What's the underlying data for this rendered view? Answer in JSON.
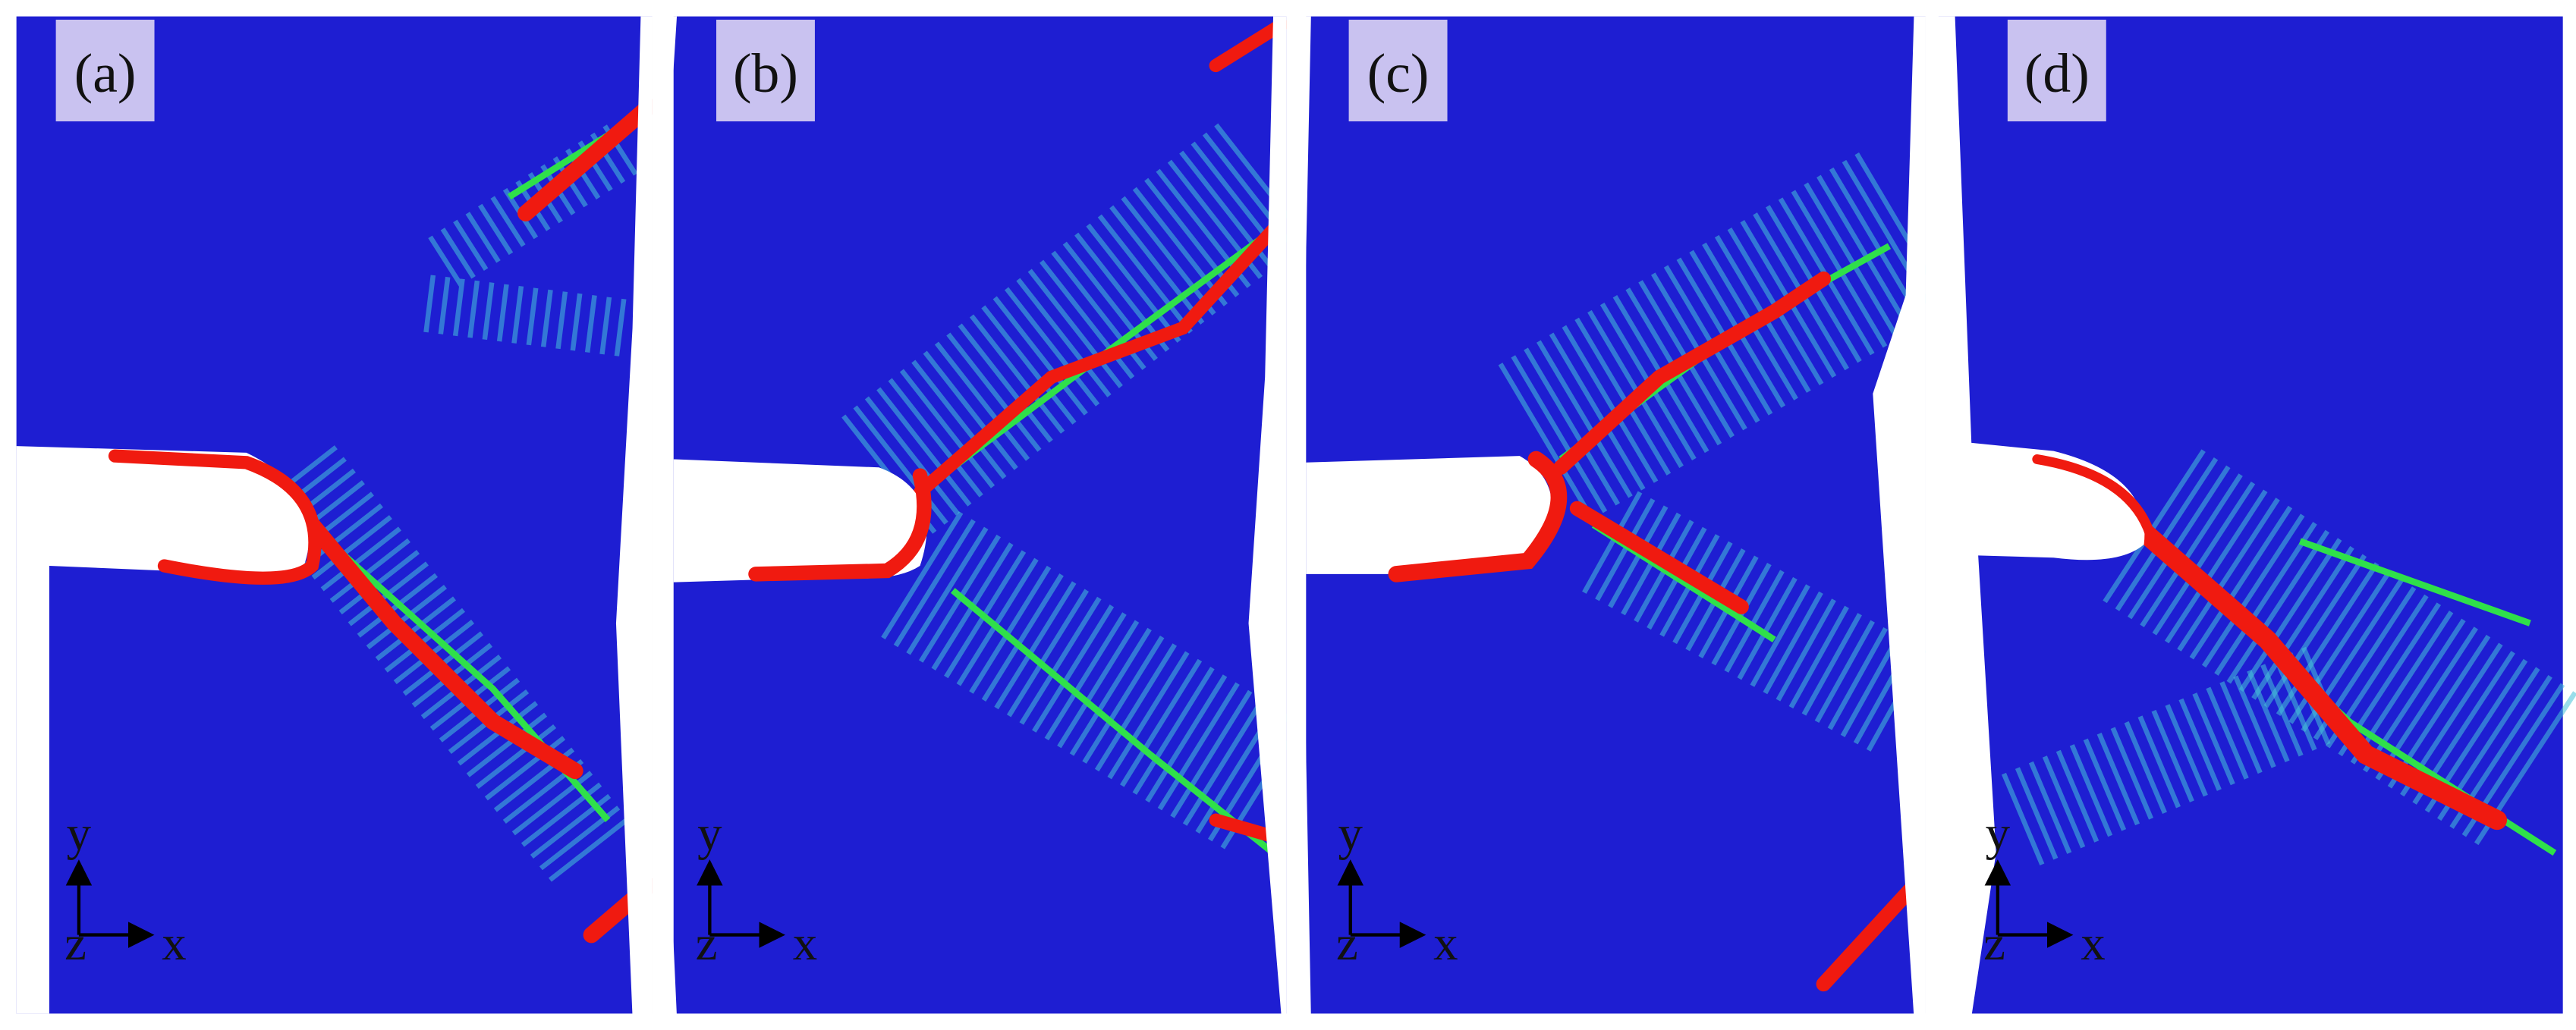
{
  "panels": [
    {
      "label": "(a)",
      "axes": {
        "y": "y",
        "z": "z",
        "x": "x"
      }
    },
    {
      "label": "(b)",
      "axes": {
        "y": "y",
        "z": "z",
        "x": "x"
      }
    },
    {
      "label": "(c)",
      "axes": {
        "y": "y",
        "z": "z",
        "x": "x"
      }
    },
    {
      "label": "(d)",
      "axes": {
        "y": "y",
        "z": "z",
        "x": "x"
      }
    }
  ]
}
